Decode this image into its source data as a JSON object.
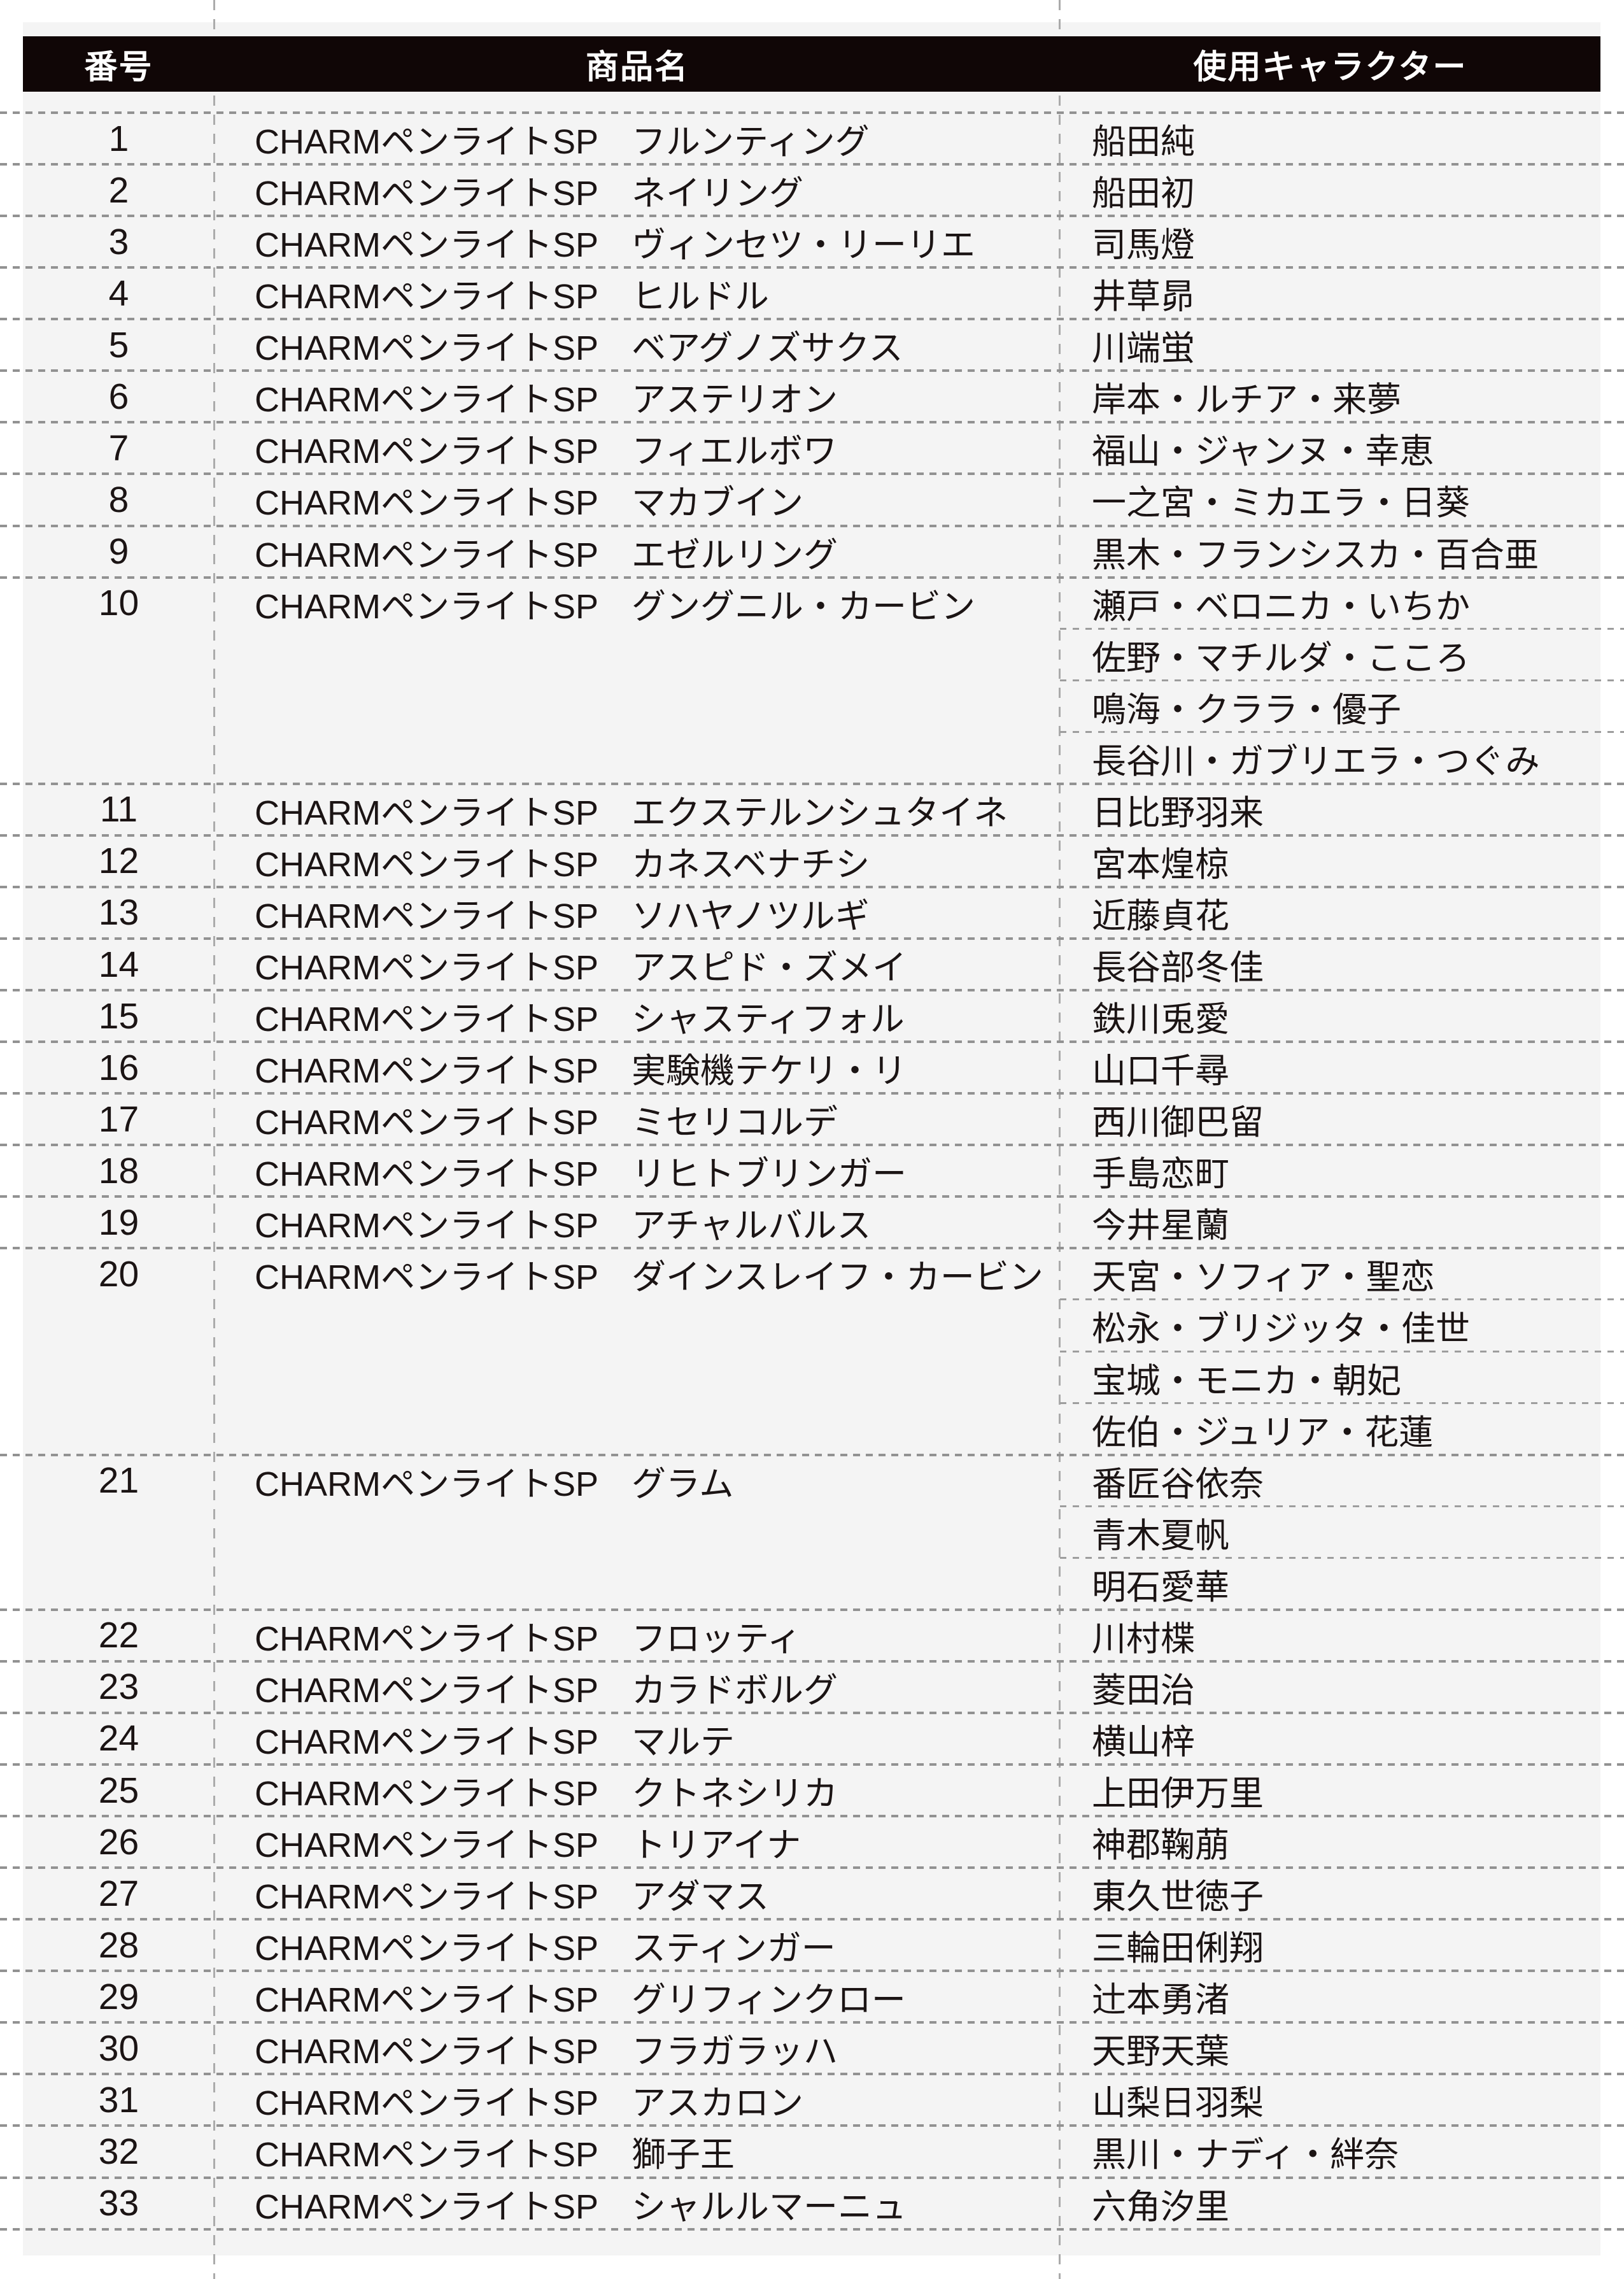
{
  "header": {
    "col_number": "番号",
    "col_product": "商品名",
    "col_character": "使用キャラクター"
  },
  "product_prefix": "CHARMペンライトSP",
  "rows": [
    {
      "no": "1",
      "name": "フルンティング",
      "characters": [
        "船田純"
      ]
    },
    {
      "no": "2",
      "name": "ネイリング",
      "characters": [
        "船田初"
      ]
    },
    {
      "no": "3",
      "name": "ヴィンセツ・リーリエ",
      "characters": [
        "司馬燈"
      ]
    },
    {
      "no": "4",
      "name": "ヒルドル",
      "characters": [
        "井草昴"
      ]
    },
    {
      "no": "5",
      "name": "ベアグノズサクス",
      "characters": [
        "川端蛍"
      ]
    },
    {
      "no": "6",
      "name": "アステリオン",
      "characters": [
        "岸本・ルチア・来夢"
      ]
    },
    {
      "no": "7",
      "name": "フィエルボワ",
      "characters": [
        "福山・ジャンヌ・幸恵"
      ]
    },
    {
      "no": "8",
      "name": "マカブイン",
      "characters": [
        "一之宮・ミカエラ・日葵"
      ]
    },
    {
      "no": "9",
      "name": "エゼルリング",
      "characters": [
        "黒木・フランシスカ・百合亜"
      ]
    },
    {
      "no": "10",
      "name": "グングニル・カービン",
      "characters": [
        "瀬戸・ベロニカ・いちか",
        "佐野・マチルダ・こころ",
        "鳴海・クララ・優子",
        "長谷川・ガブリエラ・つぐみ"
      ]
    },
    {
      "no": "11",
      "name": "エクステルンシュタイネ",
      "characters": [
        "日比野羽来"
      ]
    },
    {
      "no": "12",
      "name": "カネスベナチシ",
      "characters": [
        "宮本煌椋"
      ]
    },
    {
      "no": "13",
      "name": "ソハヤノツルギ",
      "characters": [
        "近藤貞花"
      ]
    },
    {
      "no": "14",
      "name": "アスピド・ズメイ",
      "characters": [
        "長谷部冬佳"
      ]
    },
    {
      "no": "15",
      "name": "シャスティフォル",
      "characters": [
        "鉄川兎愛"
      ]
    },
    {
      "no": "16",
      "name": "実験機テケリ・リ",
      "characters": [
        "山口千尋"
      ]
    },
    {
      "no": "17",
      "name": "ミセリコルデ",
      "characters": [
        "西川御巴留"
      ]
    },
    {
      "no": "18",
      "name": "リヒトブリンガー",
      "characters": [
        "手島恋町"
      ]
    },
    {
      "no": "19",
      "name": "アチャルバルス",
      "characters": [
        "今井星蘭"
      ]
    },
    {
      "no": "20",
      "name": "ダインスレイフ・カービン",
      "characters": [
        "天宮・ソフィア・聖恋",
        "松永・ブリジッタ・佳世",
        "宝城・モニカ・朝妃",
        "佐伯・ジュリア・花蓮"
      ]
    },
    {
      "no": "21",
      "name": "グラム",
      "characters": [
        "番匠谷依奈",
        "青木夏帆",
        "明石愛華"
      ]
    },
    {
      "no": "22",
      "name": "フロッティ",
      "characters": [
        "川村楪"
      ]
    },
    {
      "no": "23",
      "name": "カラドボルグ",
      "characters": [
        "菱田治"
      ]
    },
    {
      "no": "24",
      "name": "マルテ",
      "characters": [
        "横山梓"
      ]
    },
    {
      "no": "25",
      "name": "クトネシリカ",
      "characters": [
        "上田伊万里"
      ]
    },
    {
      "no": "26",
      "name": "トリアイナ",
      "characters": [
        "神郡鞠萠"
      ]
    },
    {
      "no": "27",
      "name": "アダマス",
      "characters": [
        "東久世徳子"
      ]
    },
    {
      "no": "28",
      "name": "スティンガー",
      "characters": [
        "三輪田俐翔"
      ]
    },
    {
      "no": "29",
      "name": "グリフィンクロー",
      "characters": [
        "辻本勇渚"
      ]
    },
    {
      "no": "30",
      "name": "フラガラッハ",
      "characters": [
        "天野天葉"
      ]
    },
    {
      "no": "31",
      "name": "アスカロン",
      "characters": [
        "山梨日羽梨"
      ]
    },
    {
      "no": "32",
      "name": "獅子王",
      "characters": [
        "黒川・ナディ・絆奈"
      ]
    },
    {
      "no": "33",
      "name": "シャルルマーニュ",
      "characters": [
        "六角汐里"
      ]
    }
  ],
  "colors": {
    "page_background": "#ffffff",
    "panel_background": "#f4f4f4",
    "header_background": "#100606",
    "header_text": "#ffffff",
    "body_text": "#1b1414",
    "grid_line": "#929292"
  }
}
